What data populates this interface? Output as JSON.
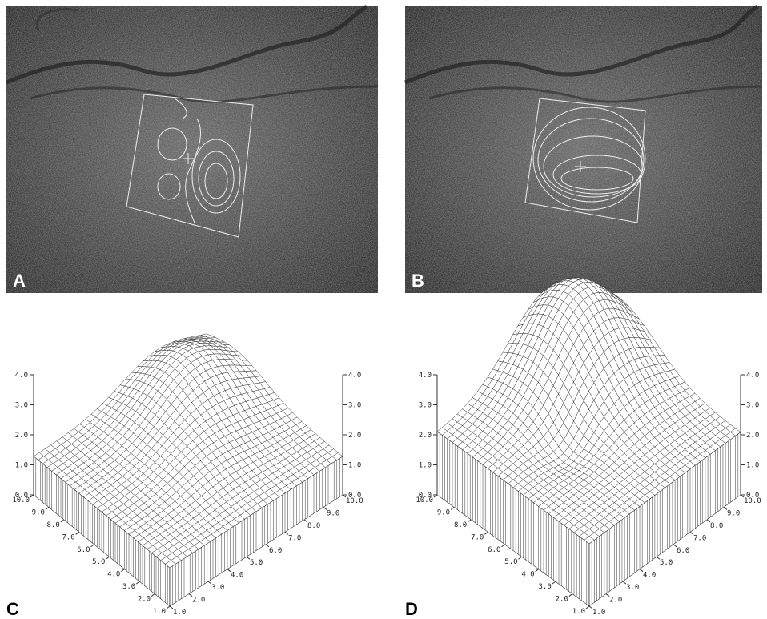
{
  "panels": [
    {
      "label": "A"
    },
    {
      "label": "B"
    },
    {
      "label": "C",
      "z_ticks": [
        "0.0",
        "1.0",
        "2.0",
        "3.0",
        "4.0"
      ],
      "x_ticks": [
        "1.0",
        "2.0",
        "3.0",
        "4.0",
        "5.0",
        "6.0",
        "7.0",
        "8.0",
        "9.0",
        "10.0"
      ],
      "y_ticks": [
        "1.0",
        "2.0",
        "3.0",
        "4.0",
        "5.0",
        "6.0",
        "7.0",
        "8.0",
        "9.0",
        "10.0"
      ]
    },
    {
      "label": "D",
      "z_ticks": [
        "0.0",
        "1.0",
        "2.0",
        "3.0",
        "4.0"
      ],
      "x_ticks": [
        "1.0",
        "2.0",
        "3.0",
        "4.0",
        "5.0",
        "6.0",
        "7.0",
        "8.0",
        "9.0",
        "10.0"
      ],
      "y_ticks": [
        "1.0",
        "2.0",
        "3.0",
        "4.0",
        "5.0",
        "6.0",
        "7.0",
        "8.0",
        "9.0",
        "10.0"
      ]
    }
  ]
}
